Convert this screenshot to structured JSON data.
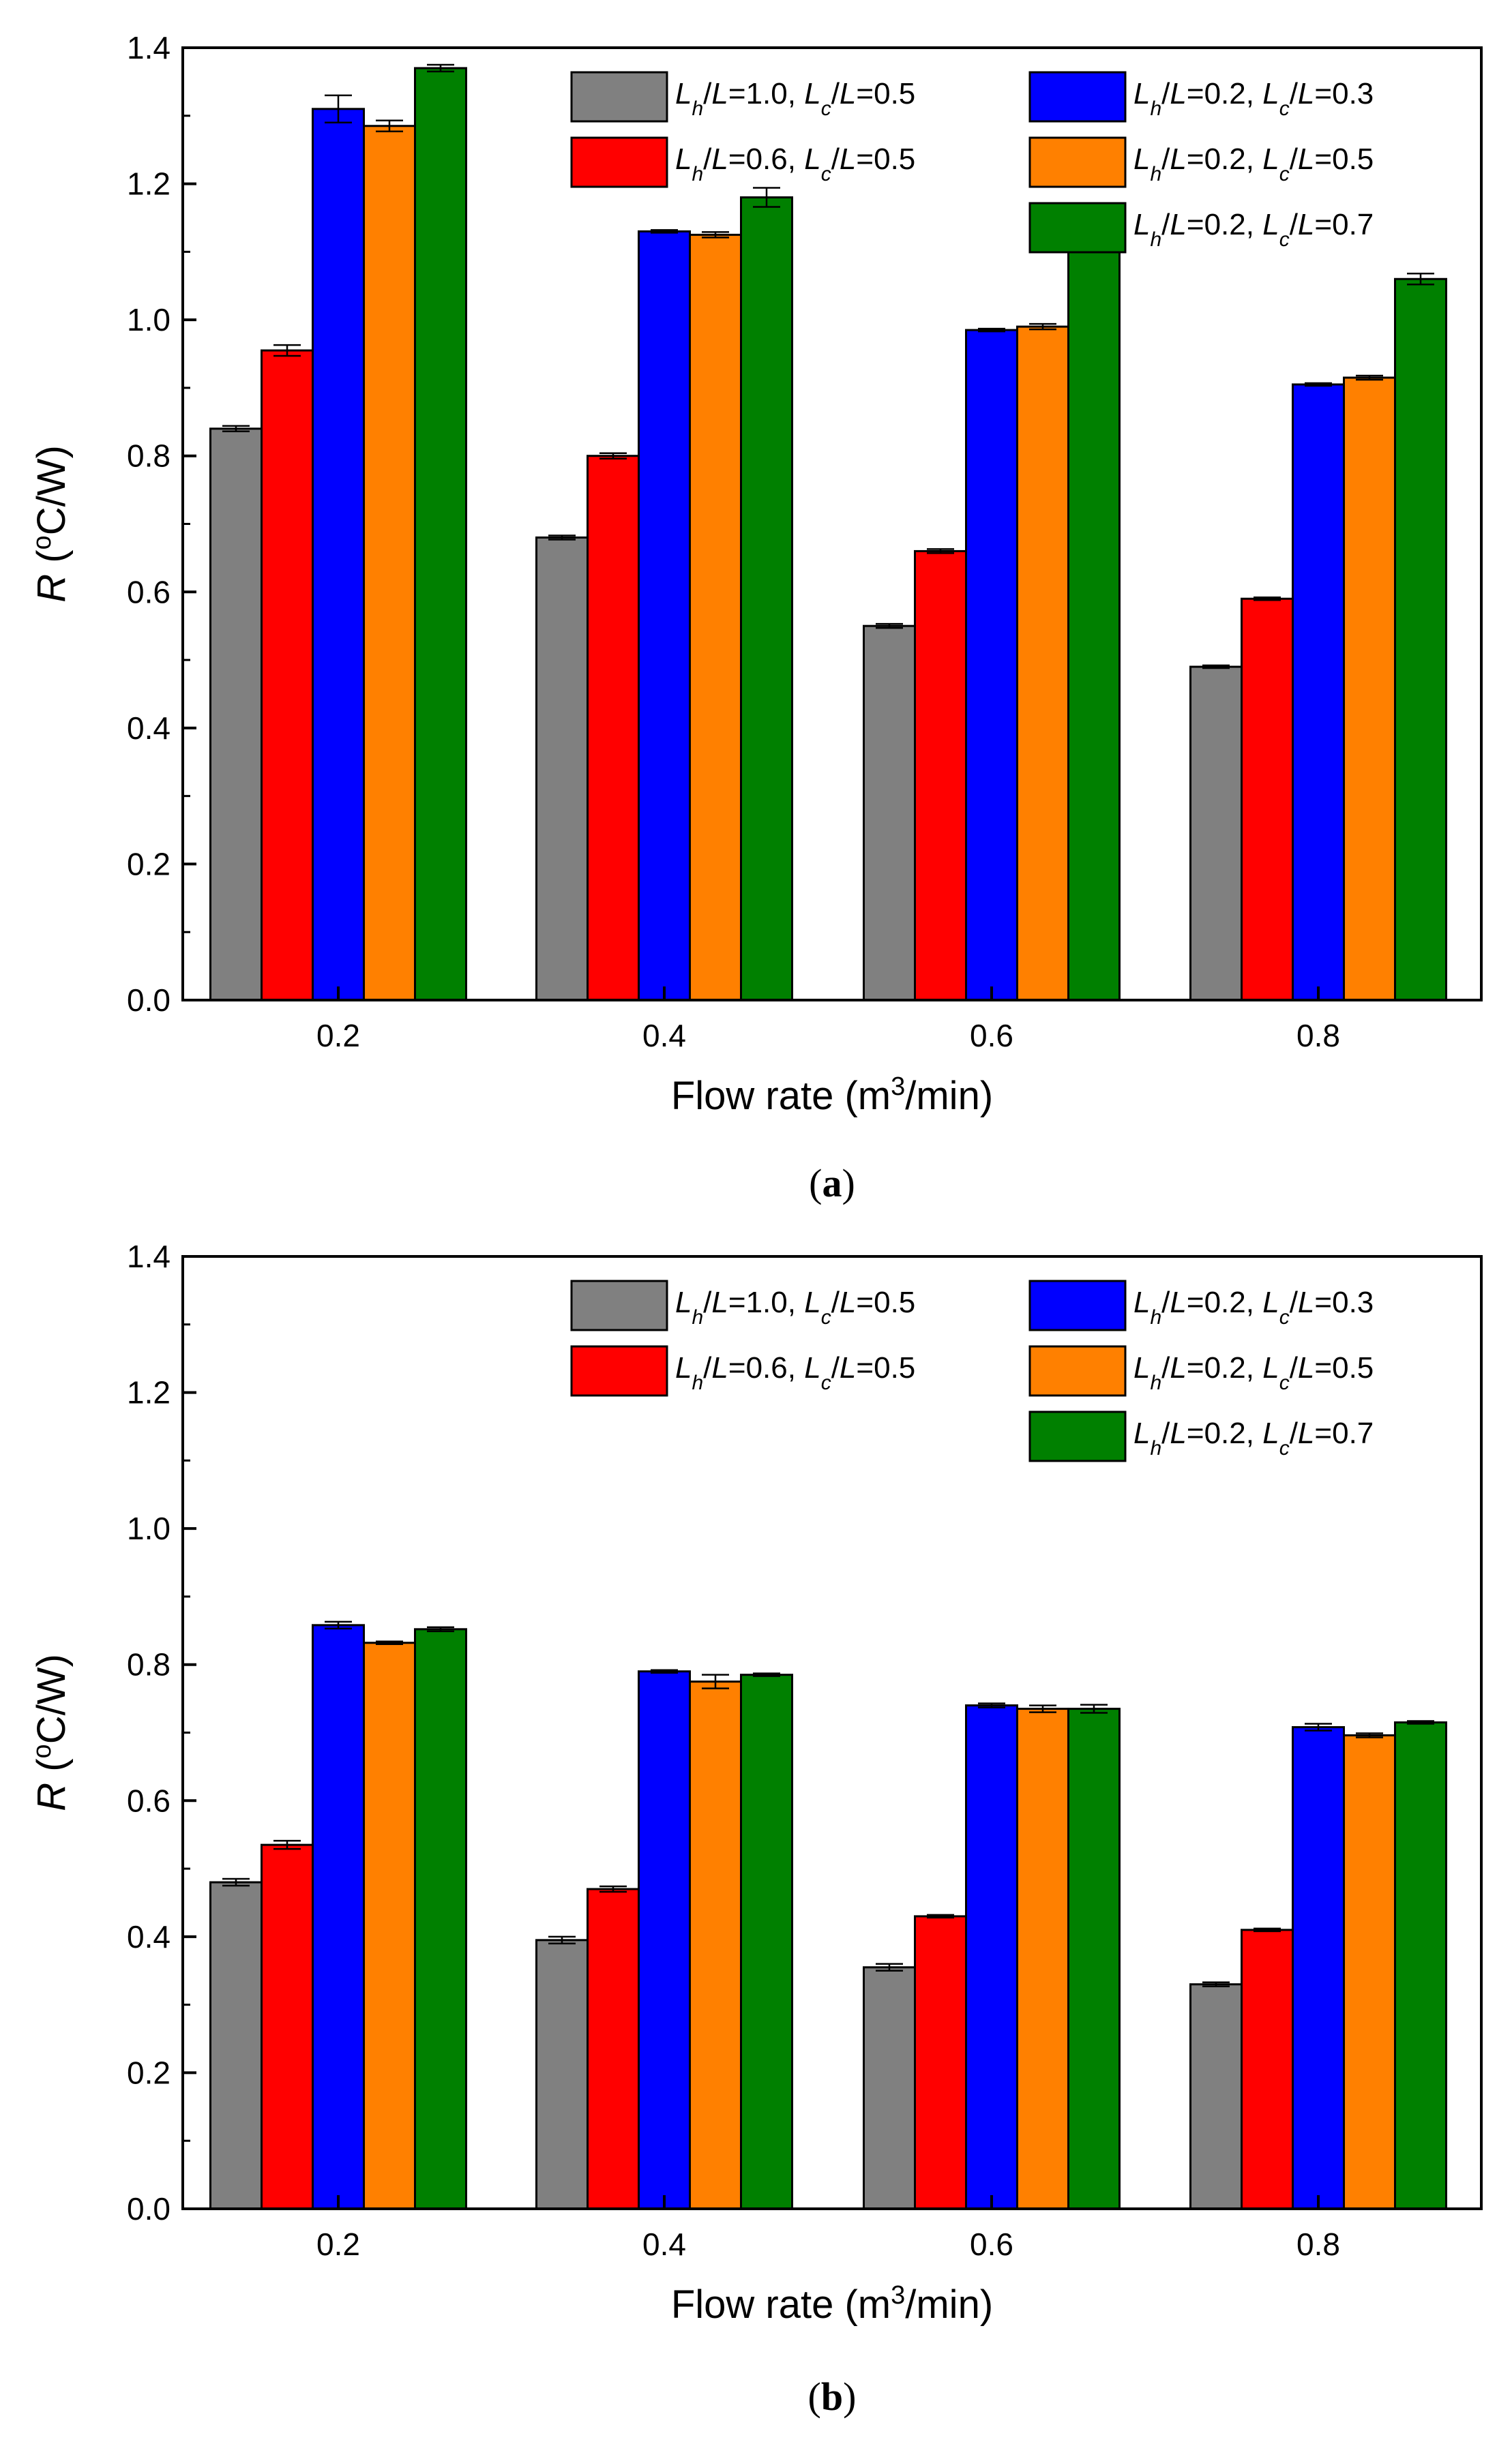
{
  "series_meta": [
    {
      "name": "Lh/L=1.0, Lc/L=0.5",
      "lh": "1.0",
      "lc": "0.5",
      "color": "#808080"
    },
    {
      "name": "Lh/L=0.6, Lc/L=0.5",
      "lh": "0.6",
      "lc": "0.5",
      "color": "#ff0000"
    },
    {
      "name": "Lh/L=0.2, Lc/L=0.3",
      "lh": "0.2",
      "lc": "0.3",
      "color": "#0000ff"
    },
    {
      "name": "Lh/L=0.2, Lc/L=0.5",
      "lh": "0.2",
      "lc": "0.5",
      "color": "#ff8000"
    },
    {
      "name": "Lh/L=0.2, Lc/L=0.7",
      "lh": "0.2",
      "lc": "0.7",
      "color": "#008000"
    }
  ],
  "chart_data": [
    {
      "type": "bar",
      "panel": "(a)",
      "panel_letter": "a",
      "ylabel": "R (°C/W)",
      "xlabel": "Flow rate (m3/min)",
      "categories": [
        "0.2",
        "0.4",
        "0.6",
        "0.8"
      ],
      "ylim": [
        0,
        1.4
      ],
      "yticks": [
        "0.0",
        "0.2",
        "0.4",
        "0.6",
        "0.8",
        "1.0",
        "1.2",
        "1.4"
      ],
      "legend_position": "top-right",
      "series": [
        {
          "name": "Lh/L=1.0, Lc/L=0.5",
          "values": [
            0.84,
            0.68,
            0.55,
            0.49
          ],
          "errors": [
            0.004,
            0.003,
            0.003,
            0.002
          ]
        },
        {
          "name": "Lh/L=0.6, Lc/L=0.5",
          "values": [
            0.955,
            0.8,
            0.66,
            0.59
          ],
          "errors": [
            0.008,
            0.004,
            0.003,
            0.002
          ]
        },
        {
          "name": "Lh/L=0.2, Lc/L=0.3",
          "values": [
            1.31,
            1.13,
            0.985,
            0.905
          ],
          "errors": [
            0.02,
            0.002,
            0.002,
            0.002
          ]
        },
        {
          "name": "Lh/L=0.2, Lc/L=0.5",
          "values": [
            1.285,
            1.125,
            0.99,
            0.915
          ],
          "errors": [
            0.008,
            0.004,
            0.004,
            0.003
          ]
        },
        {
          "name": "Lh/L=0.2, Lc/L=0.7",
          "values": [
            1.37,
            1.18,
            1.11,
            1.06
          ],
          "errors": [
            0.005,
            0.014,
            0.003,
            0.008
          ]
        }
      ]
    },
    {
      "type": "bar",
      "panel": "(b)",
      "panel_letter": "b",
      "ylabel": "R (°C/W)",
      "xlabel": "Flow rate (m3/min)",
      "categories": [
        "0.2",
        "0.4",
        "0.6",
        "0.8"
      ],
      "ylim": [
        0,
        1.4
      ],
      "yticks": [
        "0.0",
        "0.2",
        "0.4",
        "0.6",
        "0.8",
        "1.0",
        "1.2",
        "1.4"
      ],
      "legend_position": "top-right",
      "series": [
        {
          "name": "Lh/L=1.0, Lc/L=0.5",
          "values": [
            0.48,
            0.395,
            0.355,
            0.33
          ],
          "errors": [
            0.005,
            0.005,
            0.005,
            0.003
          ]
        },
        {
          "name": "Lh/L=0.6, Lc/L=0.5",
          "values": [
            0.535,
            0.47,
            0.43,
            0.41
          ],
          "errors": [
            0.006,
            0.004,
            0.002,
            0.002
          ]
        },
        {
          "name": "Lh/L=0.2, Lc/L=0.3",
          "values": [
            0.858,
            0.79,
            0.74,
            0.708
          ],
          "errors": [
            0.005,
            0.002,
            0.003,
            0.005
          ]
        },
        {
          "name": "Lh/L=0.2, Lc/L=0.5",
          "values": [
            0.832,
            0.775,
            0.735,
            0.696
          ],
          "errors": [
            0.002,
            0.01,
            0.005,
            0.003
          ]
        },
        {
          "name": "Lh/L=0.2, Lc/L=0.7",
          "values": [
            0.852,
            0.785,
            0.735,
            0.715
          ],
          "errors": [
            0.003,
            0.002,
            0.006,
            0.002
          ]
        }
      ]
    }
  ]
}
